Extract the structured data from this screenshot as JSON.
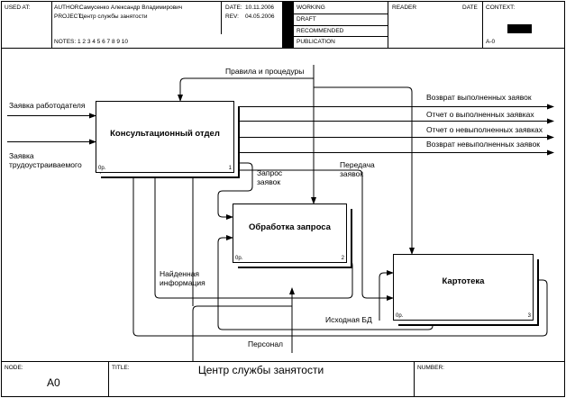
{
  "header": {
    "used_at": "USED AT:",
    "author_label": "AUTHOR:",
    "author": "Самусенко Александр Владимирович",
    "project_label": "PROJECT:",
    "project": "Центр службы занятости",
    "date_label": "DATE:",
    "date": "10.11.2006",
    "rev_label": "REV:",
    "rev": "04.05.2006",
    "notes": "NOTES:  1  2  3  4  5  6  7  8  9  10",
    "status": [
      "WORKING",
      "DRAFT",
      "RECOMMENDED",
      "PUBLICATION"
    ],
    "reader": "READER",
    "date2": "DATE",
    "context": "CONTEXT:",
    "node_ref": "A-0"
  },
  "boxes": {
    "b1": {
      "title": "Консультационный отдел",
      "code": "0р.",
      "num": "1"
    },
    "b2": {
      "title": "Обработка запроса",
      "code": "0р.",
      "num": "2"
    },
    "b3": {
      "title": "Картотека",
      "code": "0р.",
      "num": "3"
    }
  },
  "arrows": {
    "control": "Правила и процедуры",
    "in1": "Заявка работодателя",
    "in2a": "Заявка",
    "in2b": "трудоустраиваемого",
    "out1": "Возврат выполненных заявок",
    "out2": "Отчет о выполненных заявках",
    "out3": "Отчет о невыполненных заявках",
    "out4": "Возврат невыполненных заявок",
    "req_a": "Запрос",
    "req_b": "заявок",
    "pass_a": "Передача",
    "pass_b": "заявок",
    "found_a": "Найденная",
    "found_b": "информация",
    "db": "Исходная БД",
    "staff": "Персонал"
  },
  "footer": {
    "node_label": "NODE:",
    "node": "A0",
    "title_label": "TITLE:",
    "title": "Центр службы занятости",
    "number_label": "NUMBER:"
  }
}
